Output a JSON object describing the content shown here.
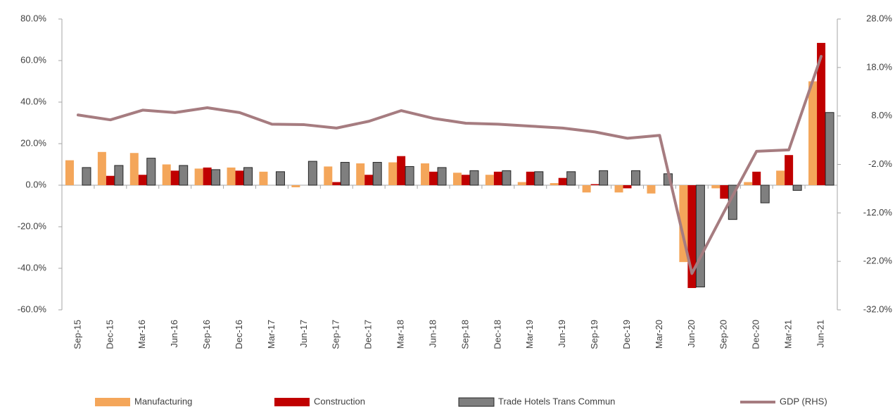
{
  "chart_data": {
    "type": "bar-line",
    "categories": [
      "Sep-15",
      "Dec-15",
      "Mar-16",
      "Jun-16",
      "Sep-16",
      "Dec-16",
      "Mar-17",
      "Jun-17",
      "Sep-17",
      "Dec-17",
      "Mar-18",
      "Jun-18",
      "Sep-18",
      "Dec-18",
      "Mar-19",
      "Jun-19",
      "Sep-19",
      "Dec-19",
      "Mar-20",
      "Jun-20",
      "Sep-20",
      "Dec-20",
      "Mar-21",
      "Jun-21"
    ],
    "series": [
      {
        "name": "Manufacturing",
        "color": "#f4a65a",
        "type": "bar",
        "values": [
          12,
          16,
          15.5,
          10,
          8,
          8.5,
          6.5,
          -1,
          9,
          10.5,
          11,
          10.5,
          6,
          5,
          1.5,
          1,
          -3.5,
          -3.5,
          -4,
          -37,
          -1.5,
          1.5,
          7,
          50
        ]
      },
      {
        "name": "Construction",
        "color": "#c00000",
        "type": "bar",
        "values": [
          0,
          4.5,
          5,
          7,
          8.5,
          7,
          0,
          0,
          1.5,
          5,
          14,
          6.5,
          5,
          6.5,
          6.5,
          3.5,
          0.5,
          -1.5,
          0,
          -49.5,
          -6.5,
          6.5,
          14.5,
          68.5
        ]
      },
      {
        "name": "Trade Hotels Trans Commun",
        "color": "#7f7f7f",
        "type": "bar",
        "values": [
          8.5,
          9.5,
          13,
          9.5,
          7.5,
          8.5,
          6.5,
          11.5,
          11,
          11,
          9,
          8.5,
          7,
          7,
          6.5,
          6.5,
          7,
          7,
          5.5,
          -49,
          -16.5,
          -8.5,
          -2.5,
          35
        ]
      },
      {
        "name": "GDP (RHS)",
        "color": "#a67c80",
        "type": "line",
        "axis": "y2",
        "values": [
          8.2,
          7.2,
          9.2,
          8.7,
          9.7,
          8.7,
          6.3,
          6.2,
          5.5,
          6.9,
          9.1,
          7.5,
          6.5,
          6.3,
          5.9,
          5.5,
          4.7,
          3.4,
          4.0,
          -24.5,
          -11.7,
          0.7,
          1.0,
          20.3
        ]
      }
    ],
    "ylim": [
      -60,
      80
    ],
    "yticks": [
      {
        "value": -60,
        "label": "-60.0%"
      },
      {
        "value": -40,
        "label": "-40.0%"
      },
      {
        "value": -20,
        "label": "-20.0%"
      },
      {
        "value": 0,
        "label": "0.0%"
      },
      {
        "value": 20,
        "label": "20.0%"
      },
      {
        "value": 40,
        "label": "40.0%"
      },
      {
        "value": 60,
        "label": "60.0%"
      },
      {
        "value": 80,
        "label": "80.0%"
      }
    ],
    "y2lim": [
      -32,
      28
    ],
    "y2ticks": [
      {
        "value": -32,
        "label": "-32.0%"
      },
      {
        "value": -22,
        "label": "-22.0%"
      },
      {
        "value": -12,
        "label": "-12.0%"
      },
      {
        "value": -2,
        "label": "-2.0%"
      },
      {
        "value": 8,
        "label": "8.0%"
      },
      {
        "value": 18,
        "label": "18.0%"
      },
      {
        "value": 28,
        "label": "28.0%"
      }
    ],
    "legend": "bottom"
  }
}
